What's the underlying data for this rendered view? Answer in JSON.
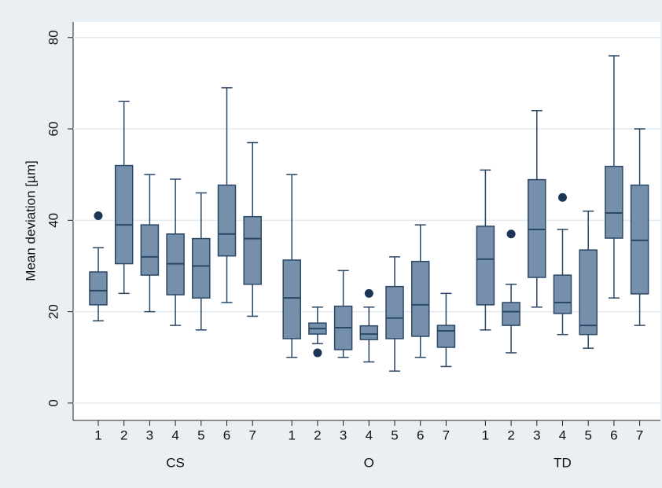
{
  "chart_data": {
    "type": "box",
    "y_label": "Mean deviation [µm]",
    "ylim": [
      -3.8,
      83.4
    ],
    "yticks": [
      0,
      20,
      40,
      60,
      80
    ],
    "grid": true,
    "box_color": "#7690ac",
    "line_color": "#2a4766",
    "outlier_color": "#1d3557",
    "groups": [
      {
        "name": "CS",
        "categories": [
          "1",
          "2",
          "3",
          "4",
          "5",
          "6",
          "7"
        ],
        "boxes": [
          {
            "min": 18,
            "q1": 21.5,
            "median": 24.6,
            "q3": 28.7,
            "max": 34,
            "outliers": [
              41
            ]
          },
          {
            "min": 24,
            "q1": 30.5,
            "median": 39,
            "q3": 52,
            "max": 66
          },
          {
            "min": 20,
            "q1": 28,
            "median": 32,
            "q3": 39,
            "max": 50
          },
          {
            "min": 17,
            "q1": 23.7,
            "median": 30.5,
            "q3": 37,
            "max": 49
          },
          {
            "min": 16,
            "q1": 23,
            "median": 30,
            "q3": 36,
            "max": 46
          },
          {
            "min": 22,
            "q1": 32.2,
            "median": 37,
            "q3": 47.7,
            "max": 69
          },
          {
            "min": 19,
            "q1": 26,
            "median": 36,
            "q3": 40.8,
            "max": 57
          }
        ]
      },
      {
        "name": "O",
        "categories": [
          "1",
          "2",
          "3",
          "4",
          "5",
          "6",
          "7"
        ],
        "boxes": [
          {
            "min": 10,
            "q1": 14.1,
            "median": 23,
            "q3": 31.3,
            "max": 50
          },
          {
            "min": 13,
            "q1": 15.1,
            "median": 16.3,
            "q3": 17.5,
            "max": 21,
            "outliers": [
              11
            ]
          },
          {
            "min": 10,
            "q1": 11.7,
            "median": 16.5,
            "q3": 21.2,
            "max": 29
          },
          {
            "min": 9,
            "q1": 13.9,
            "median": 15.1,
            "q3": 16.9,
            "max": 21,
            "outliers": [
              24
            ]
          },
          {
            "min": 7,
            "q1": 14.1,
            "median": 18.6,
            "q3": 25.5,
            "max": 32
          },
          {
            "min": 10,
            "q1": 14.6,
            "median": 21.5,
            "q3": 31,
            "max": 39
          },
          {
            "min": 8,
            "q1": 12.2,
            "median": 15.8,
            "q3": 17,
            "max": 24
          }
        ]
      },
      {
        "name": "TD",
        "categories": [
          "1",
          "2",
          "3",
          "4",
          "5",
          "6",
          "7"
        ],
        "boxes": [
          {
            "min": 16,
            "q1": 21.5,
            "median": 31.5,
            "q3": 38.7,
            "max": 51
          },
          {
            "min": 11,
            "q1": 17,
            "median": 20,
            "q3": 22,
            "max": 26,
            "outliers": [
              37
            ]
          },
          {
            "min": 21,
            "q1": 27.5,
            "median": 38,
            "q3": 48.9,
            "max": 64
          },
          {
            "min": 15,
            "q1": 19.6,
            "median": 22,
            "q3": 28,
            "max": 38,
            "outliers": [
              45
            ]
          },
          {
            "min": 12,
            "q1": 15,
            "median": 17,
            "q3": 33.5,
            "max": 42
          },
          {
            "min": 23,
            "q1": 36.1,
            "median": 41.6,
            "q3": 51.8,
            "max": 76
          },
          {
            "min": 17,
            "q1": 23.9,
            "median": 35.6,
            "q3": 47.7,
            "max": 60
          }
        ]
      }
    ]
  }
}
